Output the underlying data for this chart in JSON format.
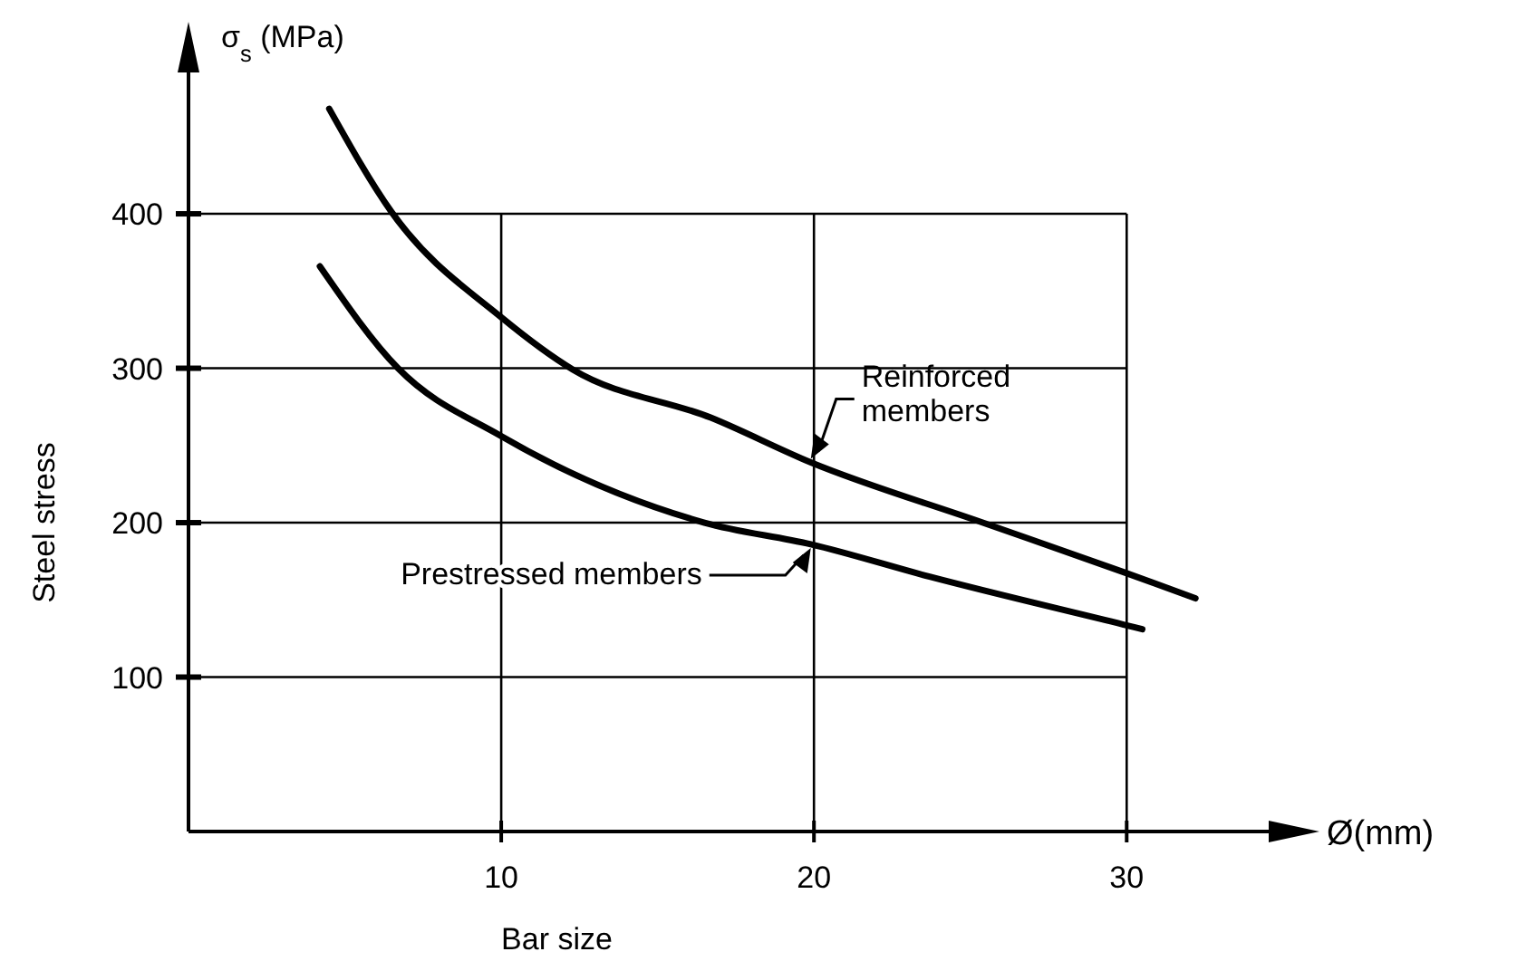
{
  "chart_data": {
    "type": "line",
    "xlabel": "Bar size",
    "ylabel": "Steel stress",
    "annotations": [
      "σ$_{s}$ (MPa)",
      "Ø(mm)"
    ],
    "xlim": [
      0,
      35.7
    ],
    "ylim": [
      0,
      515
    ],
    "xticks": [
      10,
      20,
      30
    ],
    "yticks": [
      100,
      200,
      300,
      400
    ],
    "grid": true,
    "line_style": "solid",
    "marker": "none",
    "series": [
      {
        "name": "Reinforced members",
        "color": "#000000",
        "x": [
          4.5,
          6.5,
          10,
          12.3,
          16.7,
          19.9,
          25.4,
          29.9,
          32.2
        ],
        "values": [
          468,
          401,
          333,
          299,
          268,
          239,
          200,
          168,
          151
        ]
      },
      {
        "name": "Prestressed members",
        "color": "#000000",
        "x": [
          4.2,
          6.7,
          10,
          16.5,
          19.9,
          23.7,
          29.9,
          30.5
        ],
        "values": [
          366,
          300,
          256,
          200,
          186,
          165,
          134,
          131
        ]
      }
    ]
  }
}
